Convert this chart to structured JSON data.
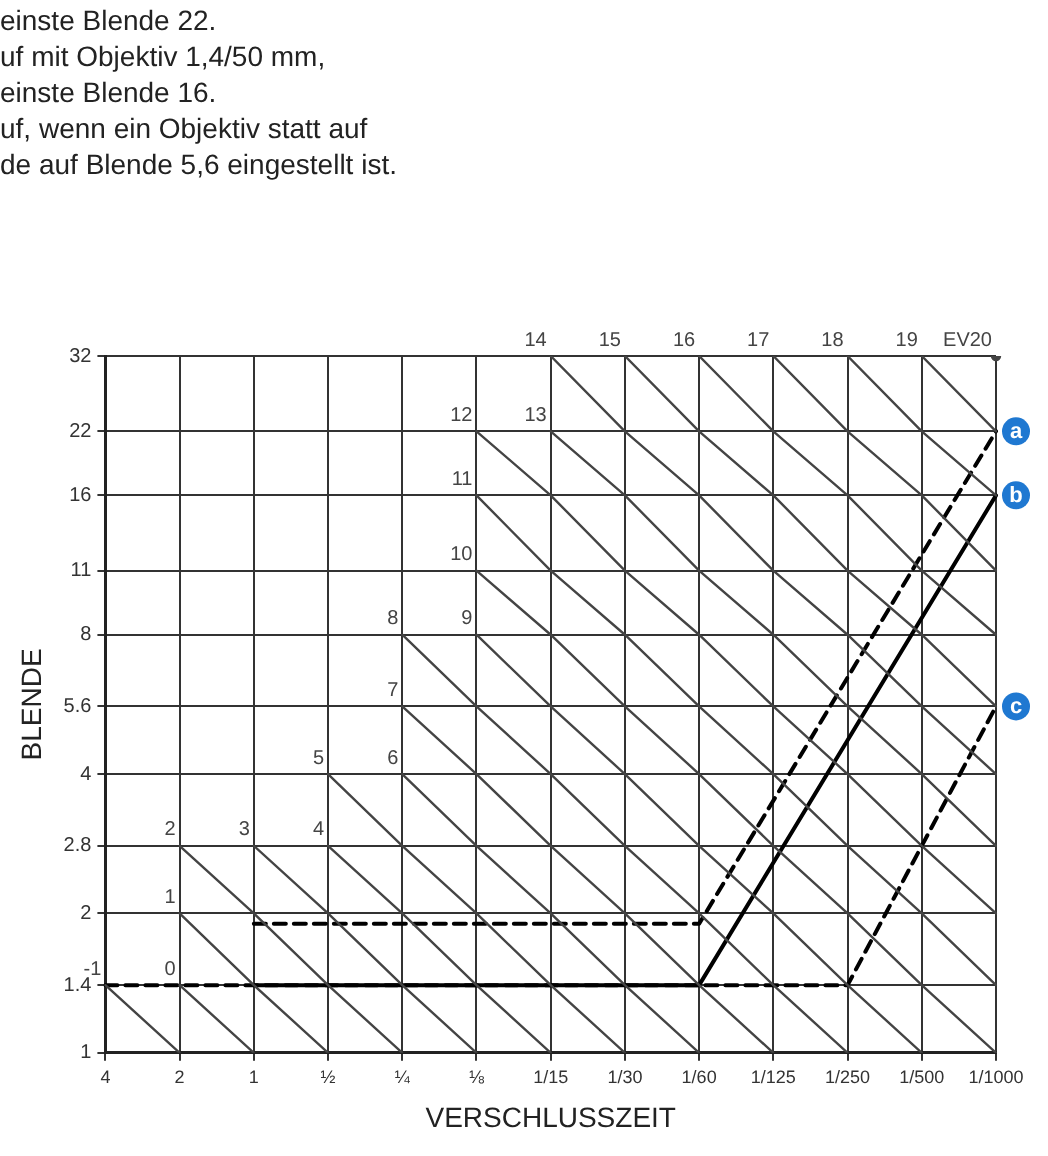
{
  "chart_data": {
    "type": "line",
    "xlabel": "VERSCHLUSSZEIT",
    "ylabel": "BLENDE",
    "categories": [
      "4",
      "2",
      "1",
      "½",
      "¼",
      "⅛",
      "1/15",
      "1/30",
      "1/60",
      "1/125",
      "1/250",
      "1/500",
      "1/1000"
    ],
    "log": "y",
    "ylim": [
      1,
      32
    ],
    "yticks": [
      1,
      1.4,
      2,
      2.8,
      4,
      5.6,
      8,
      11,
      16,
      22,
      32
    ],
    "grid": true,
    "legend": false,
    "marker": "none",
    "series": [
      {
        "name": "-1",
        "color": "#444444",
        "values": [
          1.4,
          1,
          null,
          null,
          null,
          null,
          null,
          null,
          null,
          null,
          null,
          null,
          null
        ]
      },
      {
        "name": "0",
        "color": "#444444",
        "values": [
          null,
          1.4,
          1,
          null,
          null,
          null,
          null,
          null,
          null,
          null,
          null,
          null,
          null
        ]
      },
      {
        "name": "1",
        "color": "#444444",
        "values": [
          null,
          2,
          1.4,
          1,
          null,
          null,
          null,
          null,
          null,
          null,
          null,
          null,
          null
        ]
      },
      {
        "name": "2",
        "color": "#444444",
        "values": [
          null,
          2.8,
          2,
          1.4,
          1,
          null,
          null,
          null,
          null,
          null,
          null,
          null,
          null
        ]
      },
      {
        "name": "3",
        "color": "#444444",
        "values": [
          null,
          null,
          2.8,
          2,
          1.4,
          1,
          null,
          null,
          null,
          null,
          null,
          null,
          null
        ]
      },
      {
        "name": "4",
        "color": "#444444",
        "values": [
          null,
          null,
          null,
          2.8,
          2,
          1.4,
          1,
          null,
          null,
          null,
          null,
          null,
          null
        ]
      },
      {
        "name": "5",
        "color": "#444444",
        "values": [
          null,
          null,
          null,
          4,
          2.8,
          2,
          1.4,
          1,
          null,
          null,
          null,
          null,
          null
        ]
      },
      {
        "name": "6",
        "color": "#444444",
        "values": [
          null,
          null,
          null,
          null,
          4,
          2.8,
          2,
          1.4,
          1,
          null,
          null,
          null,
          null
        ]
      },
      {
        "name": "7",
        "color": "#444444",
        "values": [
          null,
          null,
          null,
          null,
          5.6,
          4,
          2.8,
          2,
          1.4,
          1,
          null,
          null,
          null
        ]
      },
      {
        "name": "8",
        "color": "#444444",
        "values": [
          null,
          null,
          null,
          null,
          8,
          5.6,
          4,
          2.8,
          2,
          1.4,
          1,
          null,
          null
        ]
      },
      {
        "name": "9",
        "color": "#444444",
        "values": [
          null,
          null,
          null,
          null,
          null,
          8,
          5.6,
          4,
          2.8,
          2,
          1.4,
          1,
          null
        ]
      },
      {
        "name": "10",
        "color": "#444444",
        "values": [
          null,
          null,
          null,
          null,
          null,
          11,
          8,
          5.6,
          4,
          2.8,
          2,
          1.4,
          1
        ]
      },
      {
        "name": "11",
        "color": "#444444",
        "values": [
          null,
          null,
          null,
          null,
          null,
          16,
          11,
          8,
          5.6,
          4,
          2.8,
          2,
          1.4
        ]
      },
      {
        "name": "12",
        "color": "#444444",
        "values": [
          null,
          null,
          null,
          null,
          null,
          22,
          16,
          11,
          8,
          5.6,
          4,
          2.8,
          2
        ]
      },
      {
        "name": "13",
        "color": "#444444",
        "values": [
          null,
          null,
          null,
          null,
          null,
          null,
          22,
          16,
          11,
          8,
          5.6,
          4,
          2.8
        ]
      },
      {
        "name": "14",
        "color": "#444444",
        "values": [
          null,
          null,
          null,
          null,
          null,
          null,
          32,
          22,
          16,
          11,
          8,
          5.6,
          4
        ]
      },
      {
        "name": "15",
        "color": "#444444",
        "values": [
          null,
          null,
          null,
          null,
          null,
          null,
          null,
          32,
          22,
          16,
          11,
          8,
          5.6
        ]
      },
      {
        "name": "16",
        "color": "#444444",
        "values": [
          null,
          null,
          null,
          null,
          null,
          null,
          null,
          null,
          32,
          22,
          16,
          11,
          8
        ]
      },
      {
        "name": "17",
        "color": "#444444",
        "values": [
          null,
          null,
          null,
          null,
          null,
          null,
          null,
          null,
          null,
          32,
          22,
          16,
          11
        ]
      },
      {
        "name": "18",
        "color": "#444444",
        "values": [
          null,
          null,
          null,
          null,
          null,
          null,
          null,
          null,
          null,
          null,
          32,
          22,
          16
        ]
      },
      {
        "name": "19",
        "color": "#444444",
        "values": [
          null,
          null,
          null,
          null,
          null,
          null,
          null,
          null,
          null,
          null,
          null,
          32,
          22
        ]
      },
      {
        "name": "EV20",
        "color": "#444444",
        "marker": "circle",
        "values": [
          null,
          null,
          null,
          null,
          null,
          null,
          null,
          null,
          null,
          null,
          null,
          null,
          32
        ]
      },
      {
        "color": "#000000",
        "line_style": "dashed",
        "values": [
          null,
          null,
          1.9,
          null,
          null,
          null,
          null,
          null,
          1.9,
          null,
          null,
          null,
          22
        ]
      },
      {
        "color": "#000000",
        "values": [
          null,
          null,
          1.4,
          null,
          null,
          null,
          null,
          null,
          1.4,
          null,
          null,
          null,
          16
        ]
      },
      {
        "color": "#000000",
        "line_style": "dashed",
        "values": [
          1.4,
          null,
          null,
          null,
          null,
          null,
          null,
          null,
          null,
          null,
          1.4,
          null,
          5.6
        ]
      }
    ],
    "annotations": [
      "einste Blende 22.",
      "uf mit Objektiv 1,4/50 mm,",
      "einste Blende 16.",
      "uf, wenn ein Objektiv statt auf",
      "de auf Blende 5,6 eingestellt ist.",
      {
        "text": "a",
        "x": "1/1000",
        "y": 22
      },
      {
        "text": "b",
        "x": "1/1000",
        "y": 16
      },
      {
        "text": "c",
        "x": "1/1000",
        "y": 5.6
      }
    ]
  }
}
